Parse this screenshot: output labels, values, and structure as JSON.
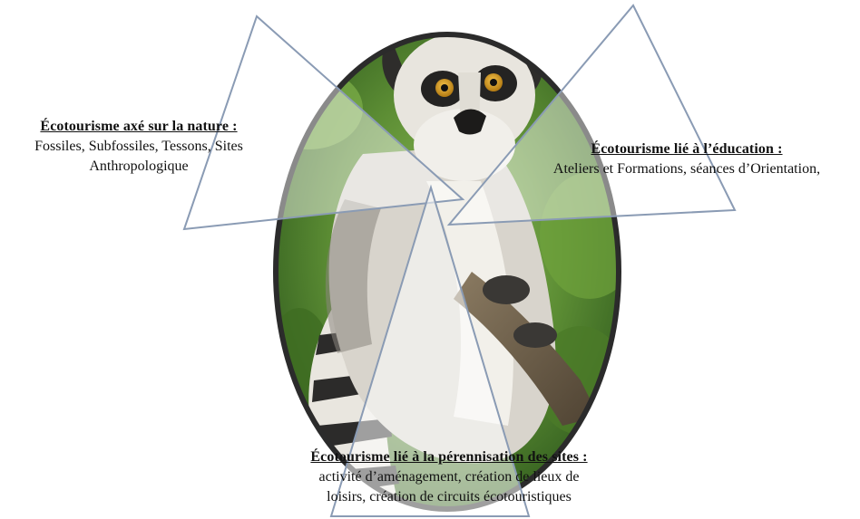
{
  "diagram": {
    "photo_subject": "ring-tailed lemur",
    "colors": {
      "frame": "#2b2b2b",
      "triangle_stroke": "#8a9bb4",
      "triangle_fill": "#ffffff",
      "foliage": "#5c8d34",
      "fur_light": "#e6e3dc",
      "fur_dark": "#6a6660"
    },
    "sections": [
      {
        "id": "nature",
        "heading": "Écotourisme  axé sur la nature :",
        "body_lines": [
          "Fossiles, Subfossiles, Tessons, Sites",
          "Anthropologique"
        ]
      },
      {
        "id": "education",
        "heading": "Écotourisme  lié à l’éducation  :",
        "body_lines": [
          "Ateliers et Formations, séances d’Orientation,"
        ]
      },
      {
        "id": "sites",
        "heading": "Écotourisme  lié à la pérennisation  des sites :",
        "body_lines": [
          "activité d’aménagement, création de lieux de",
          "loisirs, création de circuits écotouristiques"
        ]
      }
    ]
  }
}
